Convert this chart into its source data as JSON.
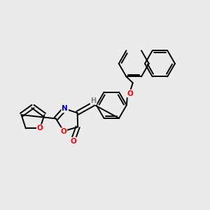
{
  "background_color": "#ebebeb",
  "bond_color": "#000000",
  "atom_colors": {
    "O": "#ff0000",
    "N": "#0000cd",
    "H": "#708090",
    "C": "#000000"
  },
  "figsize": [
    3.0,
    3.0
  ],
  "dpi": 100,
  "bond_lw": 1.4,
  "r6": 0.072,
  "r5": 0.058
}
